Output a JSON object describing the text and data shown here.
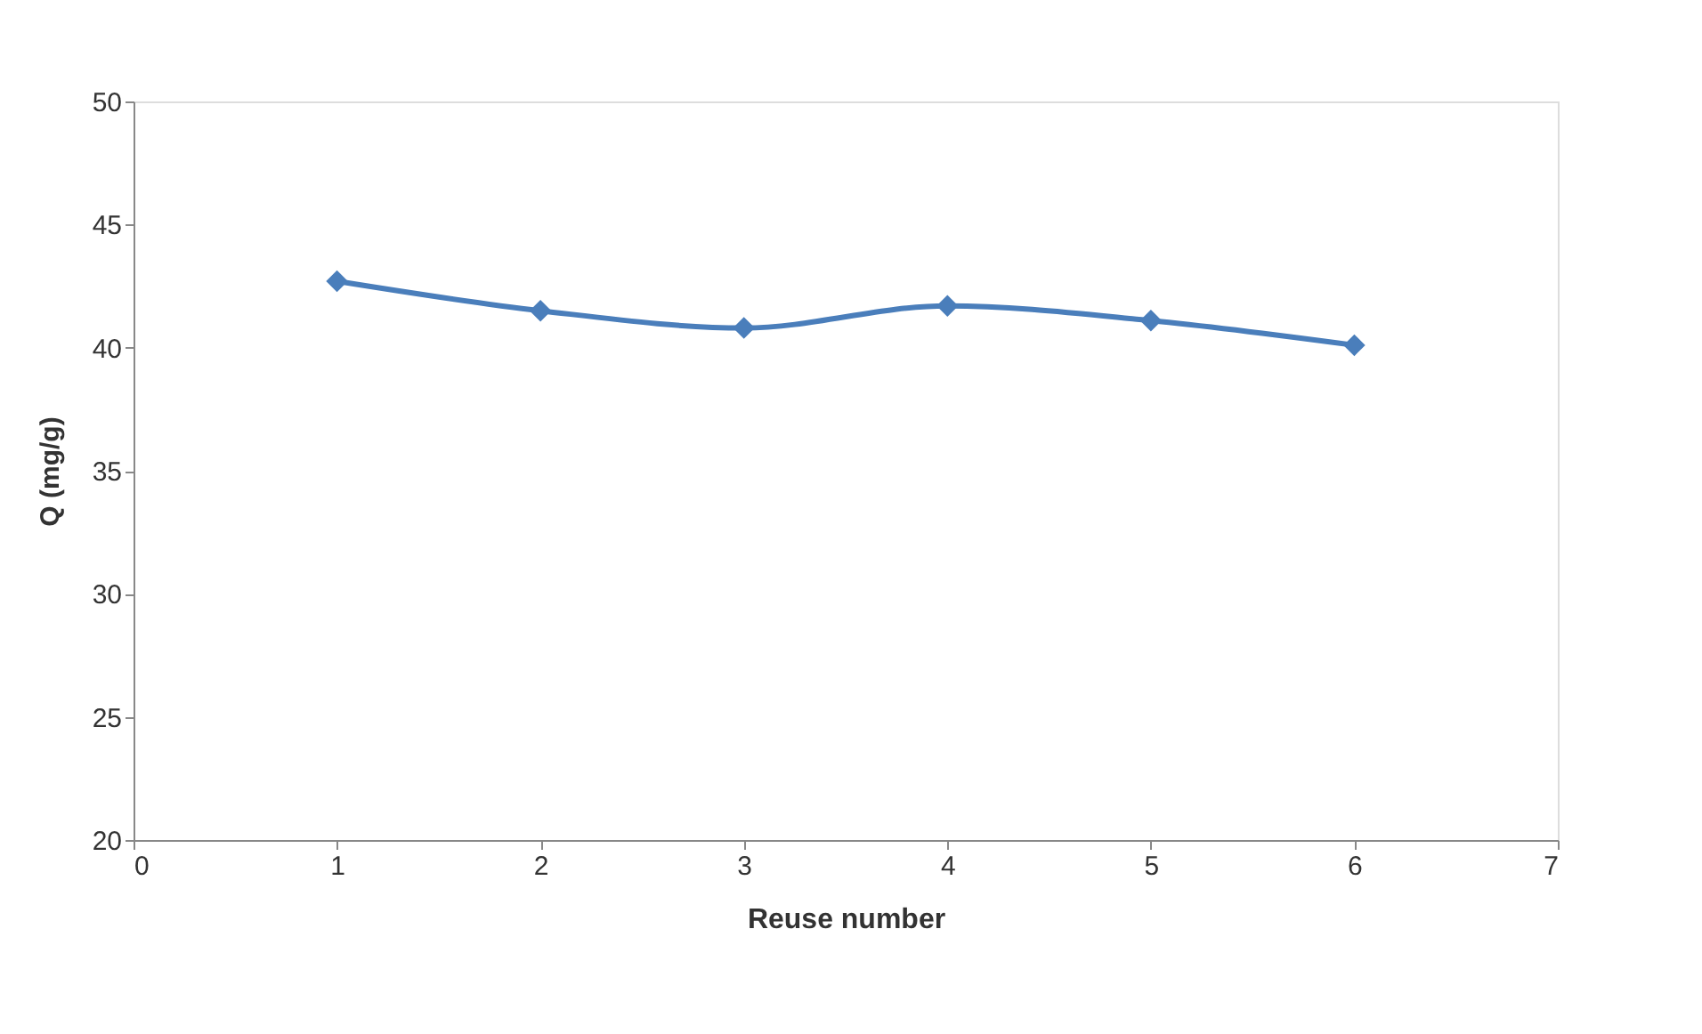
{
  "chart_data": {
    "type": "line",
    "xlabel": "Reuse number",
    "ylabel": "Q (mg/g)",
    "x": [
      1,
      2,
      3,
      4,
      5,
      6
    ],
    "series": [
      {
        "color": "#4a7ebb",
        "values": [
          42.7,
          41.5,
          40.8,
          41.7,
          41.1,
          40.1
        ]
      }
    ],
    "xlim": [
      0,
      7
    ],
    "xticks": [
      0,
      1,
      2,
      3,
      4,
      5,
      6,
      7
    ],
    "ylim": [
      20,
      50
    ],
    "yticks": [
      20,
      25,
      30,
      35,
      40,
      45,
      50
    ],
    "grid": false,
    "marker": "diamond",
    "line_style": "solid"
  }
}
